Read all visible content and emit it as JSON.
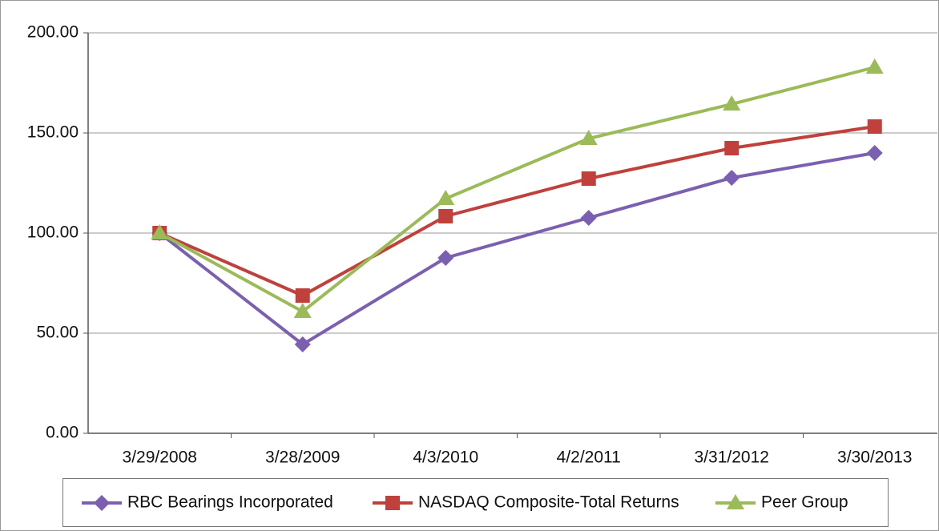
{
  "chart_data": {
    "type": "line",
    "categories": [
      "3/29/2008",
      "3/28/2009",
      "4/3/2010",
      "4/2/2011",
      "3/31/2012",
      "3/30/2013"
    ],
    "series": [
      {
        "name": "RBC Bearings Incorporated",
        "color": "#7b5fb0",
        "values": [
          100,
          44.4,
          87.6,
          107.6,
          127.6,
          140
        ]
      },
      {
        "name": "NASDAQ Composite-Total Returns",
        "color": "#c0403c",
        "values": [
          100,
          68.8,
          108.4,
          127.2,
          142.4,
          153.2
        ]
      },
      {
        "name": "Peer Group",
        "color": "#9bbb59",
        "values": [
          100,
          60.8,
          117.2,
          147.2,
          164.4,
          182.8
        ]
      }
    ],
    "ylim": [
      0,
      200
    ],
    "yticks": [
      {
        "value": 0,
        "label": "0.00"
      },
      {
        "value": 50,
        "label": "50.00"
      },
      {
        "value": 100,
        "label": "100.00"
      },
      {
        "value": 150,
        "label": "150.00"
      },
      {
        "value": 200,
        "label": "200.00"
      }
    ],
    "grid": true,
    "legend": "bottom"
  }
}
